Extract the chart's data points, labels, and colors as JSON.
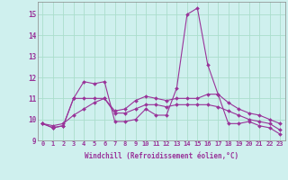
{
  "title": "",
  "xlabel": "Windchill (Refroidissement éolien,°C)",
  "ylabel": "",
  "bg_color": "#cff0ee",
  "grid_color": "#aaddcc",
  "line_color": "#993399",
  "spine_color": "#888888",
  "xlim": [
    -0.5,
    23.5
  ],
  "ylim": [
    9.0,
    15.6
  ],
  "yticks": [
    9,
    10,
    11,
    12,
    13,
    14,
    15
  ],
  "xticks": [
    0,
    1,
    2,
    3,
    4,
    5,
    6,
    7,
    8,
    9,
    10,
    11,
    12,
    13,
    14,
    15,
    16,
    17,
    18,
    19,
    20,
    21,
    22,
    23
  ],
  "series": [
    [
      9.8,
      9.6,
      9.7,
      11.0,
      11.8,
      11.7,
      11.8,
      9.9,
      9.9,
      10.0,
      10.5,
      10.2,
      10.2,
      11.5,
      15.0,
      15.3,
      12.6,
      11.2,
      9.8,
      9.8,
      9.9,
      9.7,
      9.6,
      9.3
    ],
    [
      9.8,
      9.6,
      9.7,
      11.0,
      11.0,
      11.0,
      11.0,
      10.4,
      10.5,
      10.9,
      11.1,
      11.0,
      10.9,
      11.0,
      11.0,
      11.0,
      11.2,
      11.2,
      10.8,
      10.5,
      10.3,
      10.2,
      10.0,
      9.8
    ],
    [
      9.8,
      9.7,
      9.8,
      10.2,
      10.5,
      10.8,
      11.0,
      10.3,
      10.3,
      10.5,
      10.7,
      10.7,
      10.6,
      10.7,
      10.7,
      10.7,
      10.7,
      10.6,
      10.4,
      10.2,
      10.0,
      9.9,
      9.8,
      9.5
    ]
  ],
  "tick_fontsize": 5.0,
  "xlabel_fontsize": 5.5,
  "marker_size": 2.0,
  "linewidth": 0.8
}
